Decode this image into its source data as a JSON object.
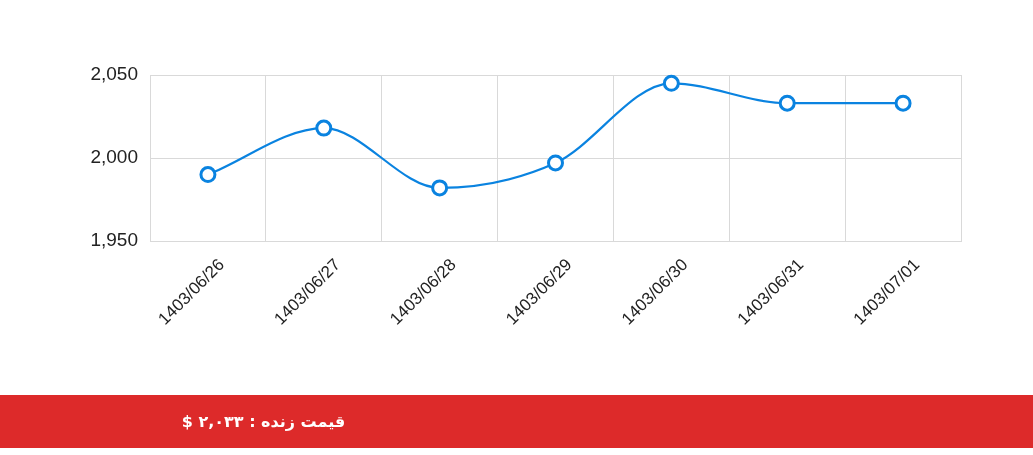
{
  "chart_data": {
    "type": "line",
    "categories": [
      "1403/06/26",
      "1403/06/27",
      "1403/06/28",
      "1403/06/29",
      "1403/06/30",
      "1403/06/31",
      "1403/07/01"
    ],
    "series": [
      {
        "color": "#0a83e0",
        "values": [
          1990,
          2018,
          1982,
          1997,
          2045,
          2033,
          2033
        ]
      }
    ],
    "ylim": [
      1950,
      2050
    ],
    "yticks": [
      {
        "value": 1950,
        "label": "1,950"
      },
      {
        "value": 2000,
        "label": "2,000"
      },
      {
        "value": 2050,
        "label": "2,050"
      }
    ],
    "grid": true,
    "marker": "circle",
    "annotations": [
      "قیمت زنده : ۲,۰۳۳ $"
    ]
  }
}
